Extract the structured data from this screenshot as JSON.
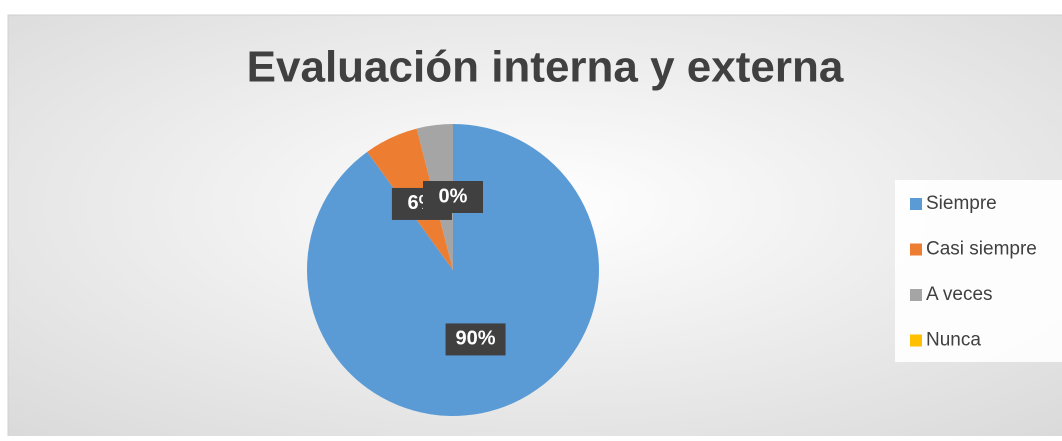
{
  "chart_data": {
    "type": "pie",
    "title": "Evaluación interna  y externa",
    "categories": [
      "Siempre",
      "Casi siempre",
      "A veces",
      "Nunca"
    ],
    "values": [
      90,
      6,
      4,
      0
    ],
    "value_labels": [
      "90%",
      "6%",
      null,
      "0%"
    ],
    "colors": [
      "#5b9bd5",
      "#ed7d31",
      "#a5a5a5",
      "#ffc000"
    ],
    "legend": "right"
  }
}
